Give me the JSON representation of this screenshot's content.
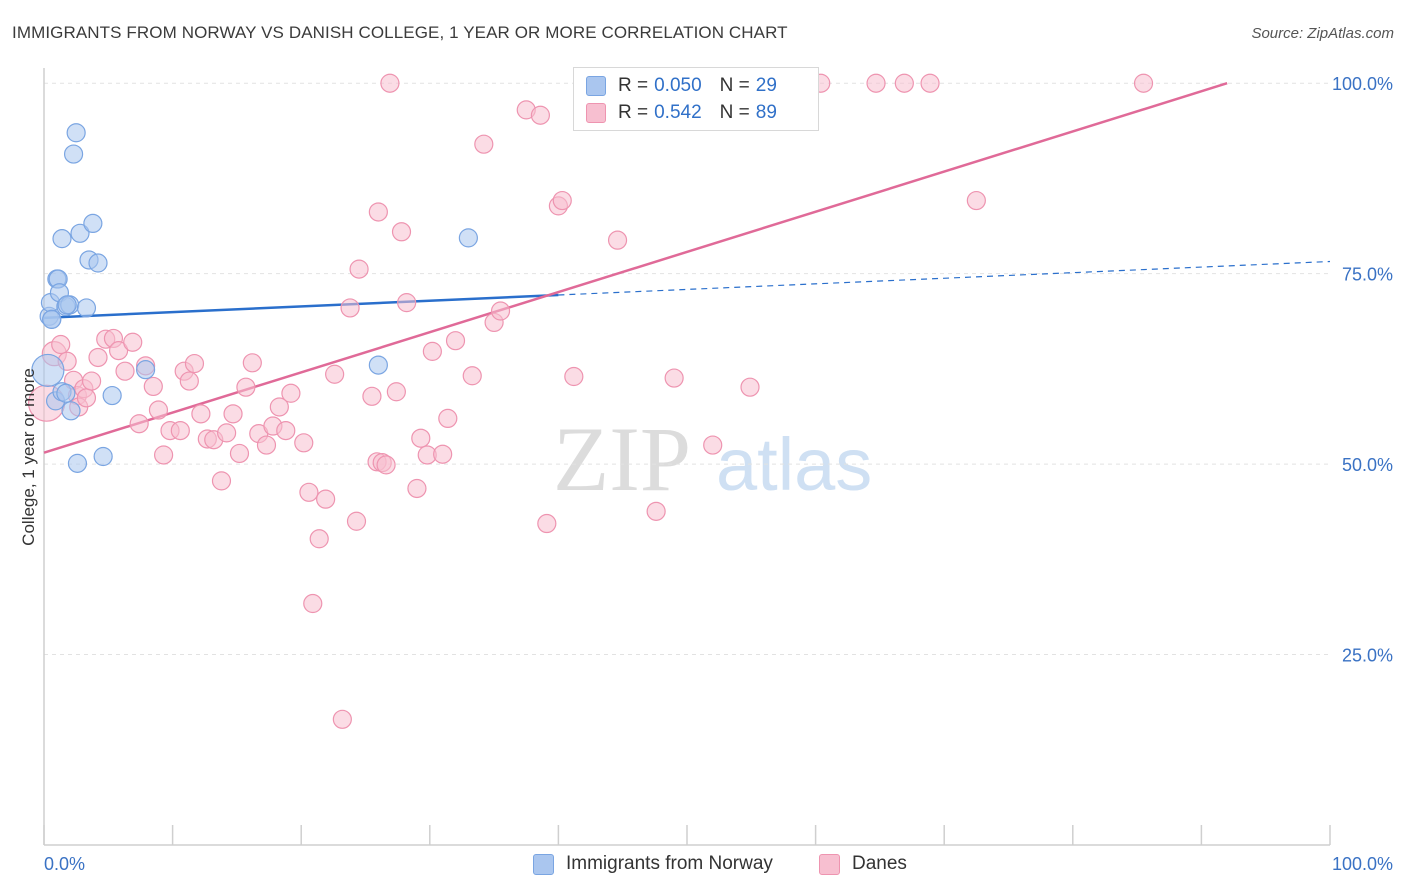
{
  "title": "IMMIGRANTS FROM NORWAY VS DANISH COLLEGE, 1 YEAR OR MORE CORRELATION CHART",
  "source": "Source: ZipAtlas.com",
  "watermark": {
    "zip": "ZIP",
    "atlas": "atlas"
  },
  "legend": {
    "rows": [
      {
        "r_label": "R =",
        "r_value": "0.050",
        "n_label": "N =",
        "n_value": "29",
        "color": "#aac6ef",
        "border": "#7aa5e2"
      },
      {
        "r_label": "R =",
        "r_value": "0.542",
        "n_label": "N =",
        "n_value": "89",
        "color": "#f7bfd0",
        "border": "#ee94b0"
      }
    ]
  },
  "bottom_legend": [
    {
      "label": "Immigrants from Norway",
      "color": "#aac6ef"
    },
    {
      "label": "Danes",
      "color": "#f7bfd0"
    }
  ],
  "chart_data": {
    "type": "scatter",
    "xlabel": "",
    "ylabel": "College, 1 year or more",
    "xlim": [
      0,
      100
    ],
    "ylim": [
      0,
      102
    ],
    "x_tick_labels": [
      {
        "value": 0,
        "label": "0.0%"
      },
      {
        "value": 100,
        "label": "100.0%"
      }
    ],
    "y_tick_labels": [
      {
        "value": 25,
        "label": "25.0%"
      },
      {
        "value": 50,
        "label": "50.0%"
      },
      {
        "value": 75,
        "label": "75.0%"
      },
      {
        "value": 100,
        "label": "100.0%"
      }
    ],
    "grid": true,
    "series": [
      {
        "name": "Immigrants from Norway",
        "color": "#7aa5e2",
        "fill": "#aac6ef",
        "trend_color": "#2a6fcc",
        "trend": {
          "x0": 0,
          "y0": 69.2,
          "x1": 40,
          "y1": 72.2,
          "dash_x1": 100,
          "dash_y1": 76.6
        },
        "points": [
          [
            0.3,
            62.3,
            16
          ],
          [
            0.4,
            69.4,
            9
          ],
          [
            0.5,
            71.2,
            9
          ],
          [
            0.6,
            69.0,
            9
          ],
          [
            0.9,
            58.3,
            9
          ],
          [
            1.0,
            74.3,
            9
          ],
          [
            1.1,
            74.3,
            9
          ],
          [
            1.2,
            72.5,
            9
          ],
          [
            1.4,
            59.5,
            9
          ],
          [
            1.4,
            79.6,
            9
          ],
          [
            1.7,
            59.3,
            9
          ],
          [
            1.7,
            70.7,
            9
          ],
          [
            2.0,
            70.9,
            9
          ],
          [
            2.1,
            57.0,
            9
          ],
          [
            2.3,
            90.7,
            9
          ],
          [
            2.5,
            93.5,
            9
          ],
          [
            2.6,
            50.1,
            9
          ],
          [
            2.8,
            80.3,
            9
          ],
          [
            3.3,
            70.5,
            9
          ],
          [
            3.5,
            76.8,
            9
          ],
          [
            3.8,
            81.6,
            9
          ],
          [
            4.2,
            76.4,
            9
          ],
          [
            4.6,
            51.0,
            9
          ],
          [
            5.3,
            59.0,
            9
          ],
          [
            7.9,
            62.4,
            9
          ],
          [
            26.0,
            63.0,
            9
          ],
          [
            33.0,
            79.7,
            9
          ],
          [
            1.8,
            70.9,
            9
          ],
          [
            0.6,
            69.0,
            9
          ]
        ]
      },
      {
        "name": "Danes",
        "color": "#ee94b0",
        "fill": "#f7bfd0",
        "trend_color": "#e06a98",
        "trend": {
          "x0": 0,
          "y0": 51.5,
          "x1": 92,
          "y1": 100.0
        },
        "points": [
          [
            0.2,
            58.0,
            18
          ],
          [
            0.8,
            64.5,
            12
          ],
          [
            1.3,
            65.7,
            9
          ],
          [
            1.8,
            63.5,
            9
          ],
          [
            2.3,
            61.0,
            9
          ],
          [
            2.6,
            59.0,
            9
          ],
          [
            2.7,
            57.5,
            9
          ],
          [
            3.1,
            59.9,
            9
          ],
          [
            3.3,
            58.7,
            9
          ],
          [
            3.7,
            60.9,
            9
          ],
          [
            4.2,
            64.0,
            9
          ],
          [
            4.8,
            66.4,
            9
          ],
          [
            5.4,
            66.5,
            9
          ],
          [
            5.8,
            64.9,
            9
          ],
          [
            6.3,
            62.2,
            9
          ],
          [
            6.9,
            66.0,
            9
          ],
          [
            7.4,
            55.3,
            9
          ],
          [
            7.9,
            62.9,
            9
          ],
          [
            8.5,
            60.2,
            9
          ],
          [
            8.9,
            57.1,
            9
          ],
          [
            9.3,
            51.2,
            9
          ],
          [
            9.8,
            54.4,
            9
          ],
          [
            10.6,
            54.4,
            9
          ],
          [
            10.9,
            62.2,
            9
          ],
          [
            11.3,
            60.9,
            9
          ],
          [
            11.7,
            63.2,
            9
          ],
          [
            12.2,
            56.6,
            9
          ],
          [
            12.7,
            53.3,
            9
          ],
          [
            13.2,
            53.2,
            9
          ],
          [
            13.8,
            47.8,
            9
          ],
          [
            14.2,
            54.1,
            9
          ],
          [
            14.7,
            56.6,
            9
          ],
          [
            15.2,
            51.4,
            9
          ],
          [
            15.7,
            60.1,
            9
          ],
          [
            16.2,
            63.3,
            9
          ],
          [
            16.7,
            54.0,
            9
          ],
          [
            17.3,
            52.5,
            9
          ],
          [
            17.8,
            55.0,
            9
          ],
          [
            18.3,
            57.5,
            9
          ],
          [
            18.8,
            54.4,
            9
          ],
          [
            19.2,
            59.3,
            9
          ],
          [
            20.2,
            52.8,
            9
          ],
          [
            20.6,
            46.3,
            9
          ],
          [
            20.9,
            31.7,
            9
          ],
          [
            21.4,
            40.2,
            9
          ],
          [
            21.9,
            45.4,
            9
          ],
          [
            22.6,
            61.8,
            9
          ],
          [
            23.2,
            16.5,
            9
          ],
          [
            23.8,
            70.5,
            9
          ],
          [
            24.3,
            42.5,
            9
          ],
          [
            24.5,
            75.6,
            9
          ],
          [
            25.5,
            58.9,
            9
          ],
          [
            25.9,
            50.3,
            9
          ],
          [
            26.0,
            83.1,
            9
          ],
          [
            26.3,
            50.2,
            9
          ],
          [
            26.6,
            49.9,
            9
          ],
          [
            26.9,
            100.0,
            9
          ],
          [
            27.4,
            59.5,
            9
          ],
          [
            27.8,
            80.5,
            9
          ],
          [
            28.2,
            71.2,
            9
          ],
          [
            29.0,
            46.8,
            9
          ],
          [
            29.3,
            53.4,
            9
          ],
          [
            29.8,
            51.2,
            9
          ],
          [
            30.2,
            64.8,
            9
          ],
          [
            31.0,
            51.3,
            9
          ],
          [
            31.4,
            56.0,
            9
          ],
          [
            32.0,
            66.2,
            9
          ],
          [
            33.3,
            61.6,
            9
          ],
          [
            34.2,
            92.0,
            9
          ],
          [
            35.0,
            68.6,
            9
          ],
          [
            35.5,
            70.1,
            9
          ],
          [
            37.5,
            96.5,
            9
          ],
          [
            38.6,
            95.8,
            9
          ],
          [
            39.1,
            42.2,
            9
          ],
          [
            40.0,
            83.9,
            9
          ],
          [
            40.3,
            84.6,
            9
          ],
          [
            41.2,
            61.5,
            9
          ],
          [
            42.6,
            100.0,
            9
          ],
          [
            44.6,
            79.4,
            9
          ],
          [
            47.6,
            43.8,
            9
          ],
          [
            49.0,
            61.3,
            9
          ],
          [
            52.0,
            52.5,
            9
          ],
          [
            54.9,
            60.1,
            9
          ],
          [
            60.4,
            100.0,
            9
          ],
          [
            64.7,
            100.0,
            9
          ],
          [
            66.9,
            100.0,
            9
          ],
          [
            68.9,
            100.0,
            9
          ],
          [
            72.5,
            84.6,
            9
          ],
          [
            85.5,
            100.0,
            9
          ]
        ]
      }
    ]
  }
}
